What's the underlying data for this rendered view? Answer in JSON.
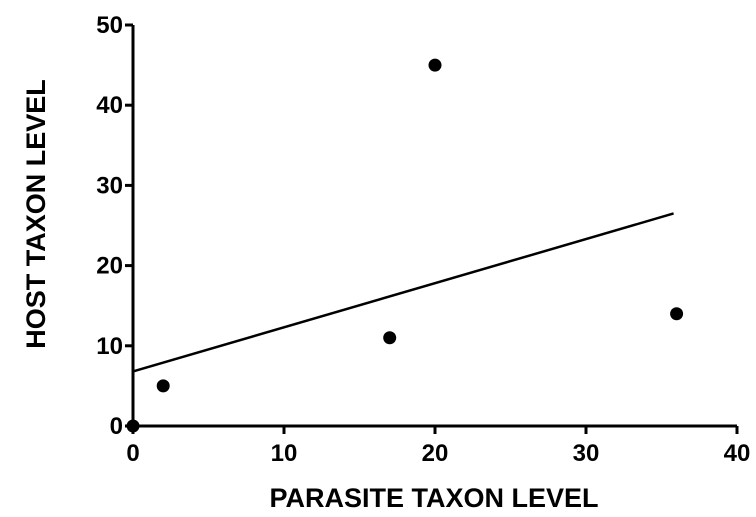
{
  "chart_data": {
    "type": "scatter",
    "title": "",
    "xlabel": "PARASITE TAXON LEVEL",
    "ylabel": "HOST TAXON LEVEL",
    "xlim": [
      0,
      40
    ],
    "ylim": [
      0,
      50
    ],
    "xticks": [
      "0",
      "10",
      "20",
      "30",
      "40"
    ],
    "yticks": [
      "0",
      "10",
      "20",
      "30",
      "40",
      "50"
    ],
    "grid": false,
    "legend": "none",
    "colors": {
      "points": "#000000",
      "line": "#000000"
    },
    "series": [
      {
        "points": [
          {
            "x": 0,
            "y": 0
          },
          {
            "x": 2,
            "y": 5
          },
          {
            "x": 17,
            "y": 11
          },
          {
            "x": 20,
            "y": 45
          },
          {
            "x": 36,
            "y": 14
          }
        ]
      }
    ],
    "trendline": {
      "x_start": 0,
      "y_start": 6.8,
      "x_end": 35.8,
      "y_end": 26.5
    }
  }
}
